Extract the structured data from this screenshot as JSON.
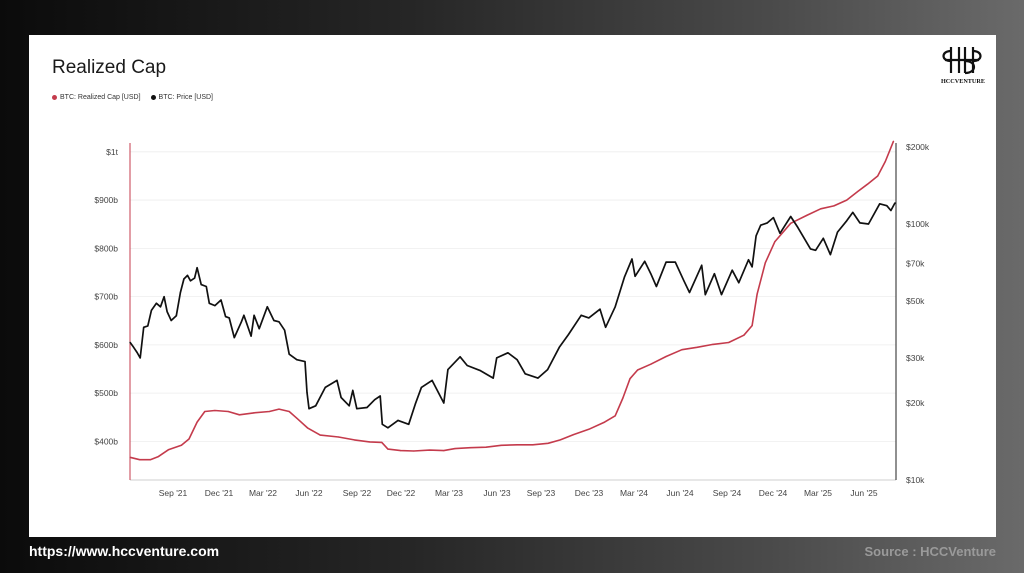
{
  "chart_data": {
    "type": "line",
    "title": "Realized Cap",
    "legend_position": "top-left",
    "grid": true,
    "x_ticks": [
      "Sep '21",
      "Dec '21",
      "Mar '22",
      "Jun '22",
      "Sep '22",
      "Dec '22",
      "Mar '23",
      "Jun '23",
      "Sep '23",
      "Dec '23",
      "Mar '24",
      "Jun '24",
      "Sep '24",
      "Dec '24",
      "Mar '25",
      "Jun '25"
    ],
    "xlim": [
      "2021-07-01",
      "2025-08-15"
    ],
    "y_left": {
      "label": "",
      "ylim": [
        320,
        1010
      ],
      "ticks": [
        {
          "value": 400,
          "label": "$400b"
        },
        {
          "value": 500,
          "label": "$500b"
        },
        {
          "value": 600,
          "label": "$600b"
        },
        {
          "value": 700,
          "label": "$700b"
        },
        {
          "value": 800,
          "label": "$800b"
        },
        {
          "value": 900,
          "label": "$900b"
        },
        {
          "value": 1000,
          "label": "$1t"
        }
      ]
    },
    "y_right": {
      "label": "",
      "scale": "log",
      "ylim": [
        10000,
        200000
      ],
      "ticks": [
        {
          "value": 10000,
          "label": "$10k"
        },
        {
          "value": 20000,
          "label": "$20k"
        },
        {
          "value": 30000,
          "label": "$30k"
        },
        {
          "value": 50000,
          "label": "$50k"
        },
        {
          "value": 70000,
          "label": "$70k"
        },
        {
          "value": 100000,
          "label": "$100k"
        },
        {
          "value": 200000,
          "label": "$200k"
        }
      ]
    },
    "series": [
      {
        "name": "BTC: Realized Cap [USD]",
        "axis": "left",
        "color": "#c43b4c",
        "points": [
          [
            "2021-07-01",
            367
          ],
          [
            "2021-07-20",
            362
          ],
          [
            "2021-08-10",
            362
          ],
          [
            "2021-08-25",
            368
          ],
          [
            "2021-09-15",
            383
          ],
          [
            "2021-10-10",
            392
          ],
          [
            "2021-10-25",
            405
          ],
          [
            "2021-11-10",
            440
          ],
          [
            "2021-11-25",
            462
          ],
          [
            "2021-12-15",
            464
          ],
          [
            "2022-01-10",
            462
          ],
          [
            "2022-02-01",
            455
          ],
          [
            "2022-03-01",
            459
          ],
          [
            "2022-04-01",
            462
          ],
          [
            "2022-04-20",
            467
          ],
          [
            "2022-05-10",
            462
          ],
          [
            "2022-05-25",
            448
          ],
          [
            "2022-06-15",
            428
          ],
          [
            "2022-07-10",
            413
          ],
          [
            "2022-08-15",
            409
          ],
          [
            "2022-09-15",
            403
          ],
          [
            "2022-10-15",
            399
          ],
          [
            "2022-11-08",
            398
          ],
          [
            "2022-11-20",
            384
          ],
          [
            "2022-12-15",
            381
          ],
          [
            "2023-01-10",
            380
          ],
          [
            "2023-02-10",
            382
          ],
          [
            "2023-03-10",
            381
          ],
          [
            "2023-04-01",
            385
          ],
          [
            "2023-05-01",
            387
          ],
          [
            "2023-06-01",
            388
          ],
          [
            "2023-07-01",
            392
          ],
          [
            "2023-08-01",
            393
          ],
          [
            "2023-09-01",
            393
          ],
          [
            "2023-10-01",
            396
          ],
          [
            "2023-10-25",
            403
          ],
          [
            "2023-11-20",
            414
          ],
          [
            "2023-12-20",
            425
          ],
          [
            "2024-01-20",
            440
          ],
          [
            "2024-02-10",
            453
          ],
          [
            "2024-02-25",
            490
          ],
          [
            "2024-03-10",
            530
          ],
          [
            "2024-03-25",
            548
          ],
          [
            "2024-04-20",
            560
          ],
          [
            "2024-05-20",
            576
          ],
          [
            "2024-06-20",
            590
          ],
          [
            "2024-07-20",
            595
          ],
          [
            "2024-08-20",
            601
          ],
          [
            "2024-09-20",
            605
          ],
          [
            "2024-10-20",
            620
          ],
          [
            "2024-11-05",
            640
          ],
          [
            "2024-11-15",
            705
          ],
          [
            "2024-12-01",
            770
          ],
          [
            "2024-12-20",
            814
          ],
          [
            "2025-01-20",
            852
          ],
          [
            "2025-02-20",
            868
          ],
          [
            "2025-03-20",
            882
          ],
          [
            "2025-04-15",
            888
          ],
          [
            "2025-05-10",
            900
          ],
          [
            "2025-06-01",
            918
          ],
          [
            "2025-06-20",
            933
          ],
          [
            "2025-07-10",
            950
          ],
          [
            "2025-07-25",
            980
          ],
          [
            "2025-08-10",
            1022
          ]
        ]
      },
      {
        "name": "BTC: Price [USD]",
        "axis": "right",
        "color": "#111111",
        "points": [
          [
            "2021-07-01",
            34500
          ],
          [
            "2021-07-08",
            33000
          ],
          [
            "2021-07-15",
            31500
          ],
          [
            "2021-07-21",
            30000
          ],
          [
            "2021-07-28",
            39500
          ],
          [
            "2021-08-05",
            40000
          ],
          [
            "2021-08-12",
            46000
          ],
          [
            "2021-08-22",
            49000
          ],
          [
            "2021-08-30",
            47500
          ],
          [
            "2021-09-06",
            52000
          ],
          [
            "2021-09-12",
            45500
          ],
          [
            "2021-09-20",
            42000
          ],
          [
            "2021-09-30",
            43800
          ],
          [
            "2021-10-08",
            54000
          ],
          [
            "2021-10-15",
            61000
          ],
          [
            "2021-10-22",
            63000
          ],
          [
            "2021-10-28",
            60000
          ],
          [
            "2021-11-05",
            61500
          ],
          [
            "2021-11-10",
            67500
          ],
          [
            "2021-11-18",
            58000
          ],
          [
            "2021-11-28",
            57000
          ],
          [
            "2021-12-04",
            49000
          ],
          [
            "2021-12-15",
            48000
          ],
          [
            "2021-12-27",
            50500
          ],
          [
            "2022-01-05",
            43500
          ],
          [
            "2022-01-12",
            43000
          ],
          [
            "2022-01-22",
            36000
          ],
          [
            "2022-02-05",
            41500
          ],
          [
            "2022-02-10",
            44000
          ],
          [
            "2022-02-24",
            36500
          ],
          [
            "2022-03-02",
            44000
          ],
          [
            "2022-03-12",
            39000
          ],
          [
            "2022-03-28",
            47500
          ],
          [
            "2022-04-10",
            42000
          ],
          [
            "2022-04-20",
            41500
          ],
          [
            "2022-05-01",
            38500
          ],
          [
            "2022-05-10",
            31000
          ],
          [
            "2022-05-25",
            29500
          ],
          [
            "2022-06-10",
            29000
          ],
          [
            "2022-06-14",
            22000
          ],
          [
            "2022-06-18",
            19000
          ],
          [
            "2022-07-01",
            19500
          ],
          [
            "2022-07-20",
            23000
          ],
          [
            "2022-08-12",
            24500
          ],
          [
            "2022-08-20",
            21000
          ],
          [
            "2022-09-05",
            19500
          ],
          [
            "2022-09-12",
            22400
          ],
          [
            "2022-09-20",
            19000
          ],
          [
            "2022-10-10",
            19200
          ],
          [
            "2022-10-25",
            20600
          ],
          [
            "2022-11-05",
            21300
          ],
          [
            "2022-11-09",
            16500
          ],
          [
            "2022-11-20",
            16000
          ],
          [
            "2022-12-10",
            17100
          ],
          [
            "2022-12-31",
            16500
          ],
          [
            "2023-01-13",
            19800
          ],
          [
            "2023-01-25",
            23000
          ],
          [
            "2023-02-15",
            24500
          ],
          [
            "2023-03-10",
            20000
          ],
          [
            "2023-03-18",
            27000
          ],
          [
            "2023-04-11",
            30300
          ],
          [
            "2023-04-25",
            28000
          ],
          [
            "2023-05-20",
            26800
          ],
          [
            "2023-06-15",
            25000
          ],
          [
            "2023-06-22",
            30000
          ],
          [
            "2023-07-14",
            31400
          ],
          [
            "2023-08-01",
            29500
          ],
          [
            "2023-08-17",
            26000
          ],
          [
            "2023-09-11",
            25000
          ],
          [
            "2023-09-30",
            27000
          ],
          [
            "2023-10-23",
            33000
          ],
          [
            "2023-11-10",
            37000
          ],
          [
            "2023-12-05",
            44000
          ],
          [
            "2023-12-20",
            43000
          ],
          [
            "2024-01-11",
            46500
          ],
          [
            "2024-01-22",
            39500
          ],
          [
            "2024-02-10",
            47500
          ],
          [
            "2024-02-28",
            62000
          ],
          [
            "2024-03-14",
            73000
          ],
          [
            "2024-03-20",
            62500
          ],
          [
            "2024-04-08",
            71500
          ],
          [
            "2024-04-20",
            64000
          ],
          [
            "2024-05-01",
            57000
          ],
          [
            "2024-05-20",
            71000
          ],
          [
            "2024-06-07",
            71000
          ],
          [
            "2024-06-24",
            60000
          ],
          [
            "2024-07-05",
            54000
          ],
          [
            "2024-07-29",
            69000
          ],
          [
            "2024-08-05",
            53000
          ],
          [
            "2024-08-23",
            64000
          ],
          [
            "2024-09-06",
            53000
          ],
          [
            "2024-09-27",
            66000
          ],
          [
            "2024-10-10",
            59000
          ],
          [
            "2024-10-29",
            72500
          ],
          [
            "2024-11-05",
            68000
          ],
          [
            "2024-11-13",
            90000
          ],
          [
            "2024-11-22",
            99000
          ],
          [
            "2024-12-05",
            101000
          ],
          [
            "2024-12-17",
            106000
          ],
          [
            "2024-12-30",
            92000
          ],
          [
            "2025-01-20",
            107000
          ],
          [
            "2025-02-03",
            97000
          ],
          [
            "2025-02-28",
            80000
          ],
          [
            "2025-03-10",
            79000
          ],
          [
            "2025-03-25",
            88000
          ],
          [
            "2025-04-08",
            76000
          ],
          [
            "2025-04-22",
            93000
          ],
          [
            "2025-05-10",
            103000
          ],
          [
            "2025-05-22",
            111000
          ],
          [
            "2025-06-05",
            101000
          ],
          [
            "2025-06-22",
            100000
          ],
          [
            "2025-07-14",
            120000
          ],
          [
            "2025-07-28",
            118000
          ],
          [
            "2025-08-05",
            113000
          ],
          [
            "2025-08-13",
            121000
          ]
        ]
      }
    ]
  },
  "logo": {
    "text": "HCCVENTURE"
  },
  "footer": {
    "url": "https://www.hccventure.com",
    "source": "Source : HCCVenture"
  }
}
